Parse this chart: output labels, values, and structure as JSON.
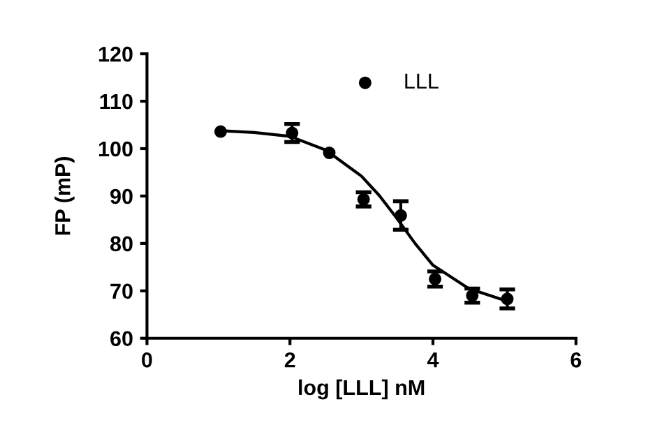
{
  "chart_data": {
    "type": "scatter",
    "xlabel": "log [LLL] nM",
    "ylabel": "FP (mP)",
    "xlim": [
      0,
      6
    ],
    "xticks": [
      0,
      2,
      4,
      6
    ],
    "ylim": [
      60,
      120
    ],
    "yticks": [
      60,
      70,
      80,
      90,
      100,
      110,
      120
    ],
    "grid": false,
    "legend": "top",
    "series": [
      {
        "name": "LLL",
        "marker": "circle",
        "color": "#000000",
        "x": [
          1.03,
          2.03,
          2.55,
          3.03,
          3.55,
          4.03,
          4.55,
          5.04
        ],
        "values": [
          103.6,
          103.3,
          99.1,
          89.3,
          85.9,
          72.5,
          69.0,
          68.3
        ],
        "errors": [
          null,
          1.9,
          null,
          1.5,
          3.0,
          1.6,
          1.5,
          2.0
        ]
      },
      {
        "type": "line",
        "color": "#000000",
        "line_style": "solid",
        "x": [
          1.0,
          1.5,
          2.0,
          2.5,
          3.0,
          3.25,
          3.5,
          3.75,
          4.0,
          4.5,
          5.0
        ],
        "values": [
          103.8,
          103.4,
          102.6,
          99.7,
          94.2,
          90.1,
          85.2,
          80.0,
          75.4,
          70.5,
          68.0
        ]
      }
    ]
  }
}
